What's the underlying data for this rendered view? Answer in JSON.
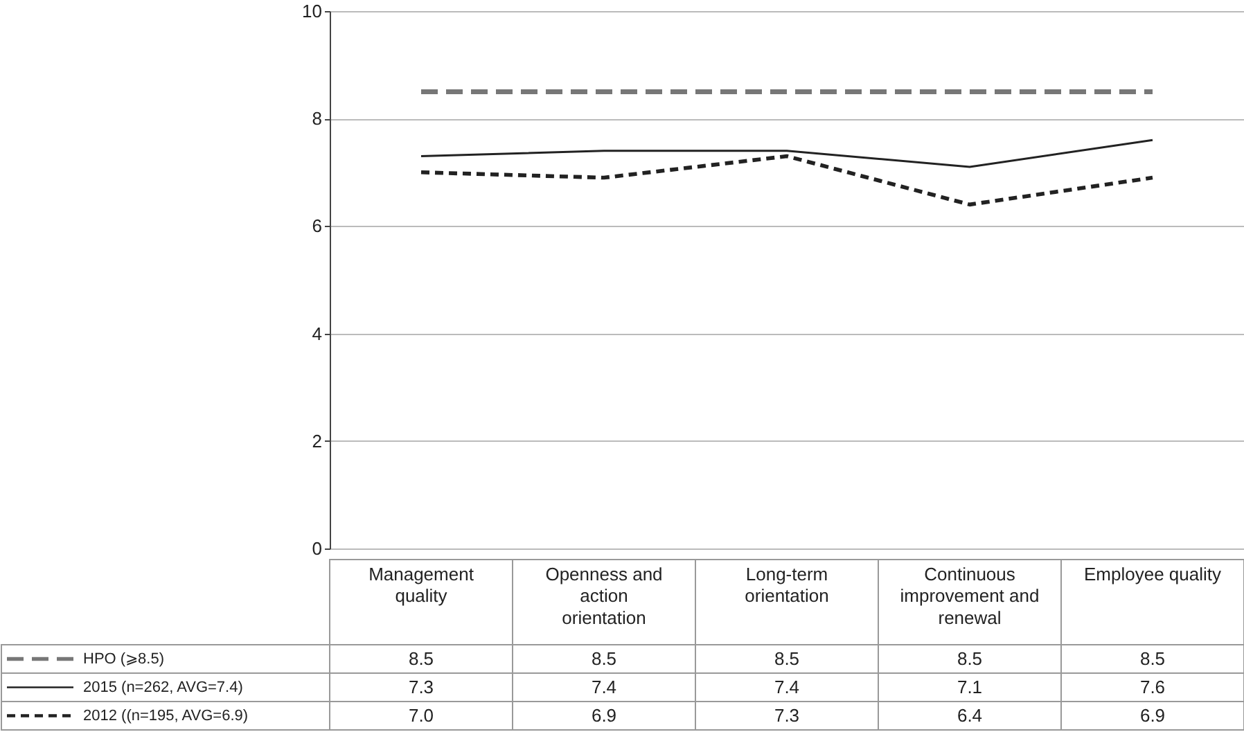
{
  "chart_data": {
    "type": "line",
    "categories": [
      "Management quality",
      "Openness and action orientation",
      "Long-term orientation",
      "Continuous improvement and renewal",
      "Employee quality"
    ],
    "series": [
      {
        "name": "HPO (⩾8.5)",
        "color": "#777777",
        "line_style": "dashed",
        "values": [
          8.5,
          8.5,
          8.5,
          8.5,
          8.5
        ],
        "value_labels": [
          "8.5",
          "8.5",
          "8.5",
          "8.5",
          "8.5"
        ]
      },
      {
        "name": "2015 (n=262, AVG=7.4)",
        "color": "#222222",
        "line_style": "solid",
        "values": [
          7.3,
          7.4,
          7.4,
          7.1,
          7.6
        ],
        "value_labels": [
          "7.3",
          "7.4",
          "7.4",
          "7.1",
          "7.6"
        ]
      },
      {
        "name": "2012 ((n=195, AVG=6.9)",
        "color": "#222222",
        "line_style": "dotted",
        "values": [
          7.0,
          6.9,
          7.3,
          6.4,
          6.9
        ],
        "value_labels": [
          "7.0",
          "6.9",
          "7.3",
          "6.4",
          "6.9"
        ]
      }
    ],
    "ylim": [
      0,
      10
    ],
    "yticks": [
      0,
      2,
      4,
      6,
      8,
      10
    ],
    "grid": "y",
    "legend": "bottom"
  }
}
